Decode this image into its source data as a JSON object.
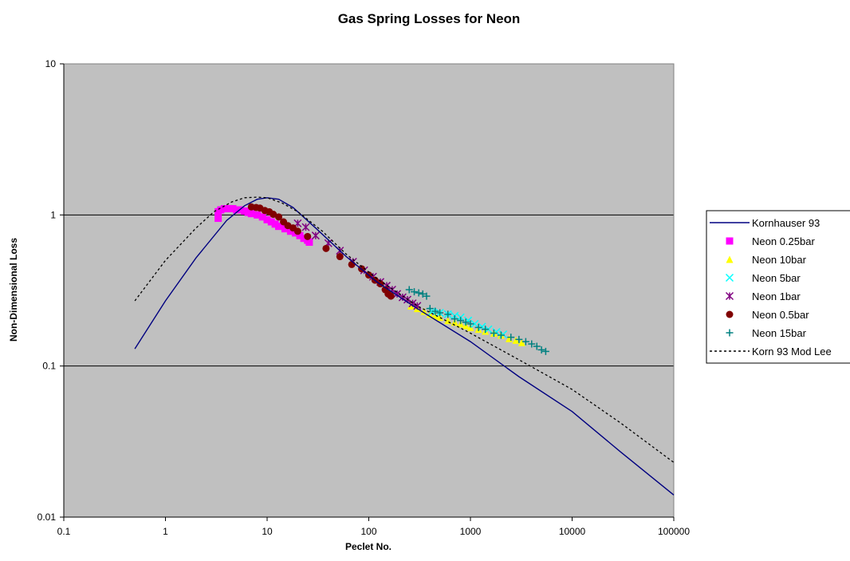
{
  "chart_data": {
    "type": "scatter",
    "title": "Gas Spring Losses for Neon",
    "xlabel": "Peclet No.",
    "ylabel": "Non-Dimensional Loss",
    "xscale": "log",
    "yscale": "log",
    "xlim": [
      0.1,
      100000
    ],
    "ylim": [
      0.01,
      10
    ],
    "x_ticks": [
      "0.1",
      "1",
      "10",
      "100",
      "1000",
      "10000",
      "100000"
    ],
    "y_ticks": [
      "0.01",
      "0.1",
      "1",
      "10"
    ],
    "grid": "horizontal major gridlines",
    "plot_background": "#c0c0c0",
    "legend_position": "right",
    "series": [
      {
        "name": "Kornhauser 93",
        "kind": "line",
        "style": "solid",
        "color": "#000080",
        "points": [
          [
            0.5,
            0.13
          ],
          [
            1,
            0.27
          ],
          [
            2,
            0.52
          ],
          [
            4,
            0.92
          ],
          [
            6,
            1.15
          ],
          [
            8,
            1.27
          ],
          [
            10,
            1.3
          ],
          [
            13,
            1.27
          ],
          [
            18,
            1.12
          ],
          [
            30,
            0.82
          ],
          [
            60,
            0.53
          ],
          [
            120,
            0.36
          ],
          [
            300,
            0.24
          ],
          [
            1000,
            0.145
          ],
          [
            3000,
            0.085
          ],
          [
            10000,
            0.05
          ],
          [
            30000,
            0.027
          ],
          [
            100000,
            0.014
          ]
        ]
      },
      {
        "name": "Neon 0.25bar",
        "kind": "marker",
        "marker": "square",
        "color": "#ff00ff",
        "points": [
          [
            3.3,
            0.95
          ],
          [
            3.3,
            1.05
          ],
          [
            3.5,
            1.08
          ],
          [
            3.8,
            1.1
          ],
          [
            4.0,
            1.1
          ],
          [
            4.3,
            1.1
          ],
          [
            4.6,
            1.1
          ],
          [
            5.0,
            1.08
          ],
          [
            5.5,
            1.08
          ],
          [
            6.0,
            1.06
          ],
          [
            6.5,
            1.04
          ],
          [
            7.0,
            1.02
          ],
          [
            8.0,
            1.0
          ],
          [
            9.0,
            0.97
          ],
          [
            10.0,
            0.93
          ],
          [
            11.0,
            0.9
          ],
          [
            12.0,
            0.87
          ],
          [
            13.0,
            0.84
          ],
          [
            15.0,
            0.81
          ],
          [
            17.0,
            0.78
          ],
          [
            19.0,
            0.76
          ],
          [
            21.0,
            0.73
          ],
          [
            23.0,
            0.7
          ],
          [
            25.0,
            0.68
          ],
          [
            26.0,
            0.66
          ]
        ]
      },
      {
        "name": "Neon 10bar",
        "kind": "marker",
        "marker": "triangle",
        "color": "#ffff00",
        "points": [
          [
            260,
            0.25
          ],
          [
            300,
            0.24
          ],
          [
            350,
            0.23
          ],
          [
            400,
            0.22
          ],
          [
            450,
            0.215
          ],
          [
            500,
            0.21
          ],
          [
            600,
            0.2
          ],
          [
            700,
            0.195
          ],
          [
            800,
            0.19
          ],
          [
            900,
            0.185
          ],
          [
            1000,
            0.18
          ],
          [
            1200,
            0.175
          ],
          [
            1400,
            0.17
          ],
          [
            1700,
            0.165
          ],
          [
            2000,
            0.16
          ],
          [
            2400,
            0.152
          ],
          [
            2800,
            0.148
          ],
          [
            3200,
            0.143
          ]
        ]
      },
      {
        "name": "Neon 5bar",
        "kind": "marker",
        "marker": "x",
        "color": "#00ffff",
        "points": [
          [
            420,
            0.23
          ],
          [
            500,
            0.225
          ],
          [
            600,
            0.22
          ],
          [
            700,
            0.215
          ],
          [
            800,
            0.21
          ],
          [
            950,
            0.2
          ],
          [
            1100,
            0.19
          ],
          [
            1300,
            0.182
          ],
          [
            1500,
            0.175
          ],
          [
            1800,
            0.168
          ],
          [
            2100,
            0.162
          ]
        ]
      },
      {
        "name": "Neon 1bar",
        "kind": "marker",
        "marker": "star",
        "color": "#800080",
        "points": [
          [
            20,
            0.88
          ],
          [
            24,
            0.83
          ],
          [
            30,
            0.73
          ],
          [
            40,
            0.65
          ],
          [
            52,
            0.58
          ],
          [
            70,
            0.49
          ],
          [
            90,
            0.43
          ],
          [
            110,
            0.39
          ],
          [
            130,
            0.36
          ],
          [
            150,
            0.34
          ],
          [
            170,
            0.32
          ],
          [
            190,
            0.3
          ],
          [
            215,
            0.285
          ],
          [
            240,
            0.275
          ],
          [
            270,
            0.26
          ],
          [
            300,
            0.25
          ]
        ]
      },
      {
        "name": "Neon 0.5bar",
        "kind": "marker",
        "marker": "circle",
        "color": "#800000",
        "points": [
          [
            7.0,
            1.13
          ],
          [
            7.8,
            1.12
          ],
          [
            8.5,
            1.11
          ],
          [
            9.5,
            1.07
          ],
          [
            10.5,
            1.05
          ],
          [
            11.5,
            1.01
          ],
          [
            13.0,
            0.97
          ],
          [
            14.5,
            0.9
          ],
          [
            16.0,
            0.85
          ],
          [
            18.0,
            0.82
          ],
          [
            20.0,
            0.78
          ],
          [
            25.0,
            0.72
          ],
          [
            38.0,
            0.6
          ],
          [
            52.0,
            0.53
          ],
          [
            68.0,
            0.47
          ],
          [
            85.0,
            0.44
          ],
          [
            100.0,
            0.4
          ],
          [
            115.0,
            0.37
          ],
          [
            130.0,
            0.35
          ],
          [
            145.0,
            0.32
          ],
          [
            155.0,
            0.3
          ],
          [
            165.0,
            0.29
          ]
        ]
      },
      {
        "name": "Neon 15bar",
        "kind": "marker",
        "marker": "plus",
        "color": "#008080",
        "points": [
          [
            250,
            0.32
          ],
          [
            280,
            0.31
          ],
          [
            310,
            0.305
          ],
          [
            340,
            0.3
          ],
          [
            370,
            0.29
          ],
          [
            400,
            0.24
          ],
          [
            450,
            0.23
          ],
          [
            500,
            0.225
          ],
          [
            600,
            0.22
          ],
          [
            700,
            0.205
          ],
          [
            800,
            0.2
          ],
          [
            900,
            0.195
          ],
          [
            1000,
            0.19
          ],
          [
            1200,
            0.18
          ],
          [
            1400,
            0.175
          ],
          [
            1700,
            0.165
          ],
          [
            2000,
            0.16
          ],
          [
            2500,
            0.155
          ],
          [
            3000,
            0.15
          ],
          [
            3500,
            0.145
          ],
          [
            4000,
            0.14
          ],
          [
            4500,
            0.135
          ],
          [
            5000,
            0.128
          ],
          [
            5500,
            0.125
          ]
        ]
      },
      {
        "name": "Korn 93 Mod Lee",
        "kind": "line",
        "style": "dotted",
        "color": "#000000",
        "points": [
          [
            0.5,
            0.27
          ],
          [
            1,
            0.5
          ],
          [
            2,
            0.82
          ],
          [
            3,
            1.05
          ],
          [
            4.5,
            1.22
          ],
          [
            6,
            1.3
          ],
          [
            8,
            1.31
          ],
          [
            10,
            1.3
          ],
          [
            14,
            1.2
          ],
          [
            20,
            1.05
          ],
          [
            35,
            0.78
          ],
          [
            60,
            0.55
          ],
          [
            120,
            0.38
          ],
          [
            300,
            0.25
          ],
          [
            1000,
            0.165
          ],
          [
            3000,
            0.11
          ],
          [
            10000,
            0.07
          ],
          [
            30000,
            0.042
          ],
          [
            100000,
            0.023
          ]
        ]
      }
    ]
  }
}
